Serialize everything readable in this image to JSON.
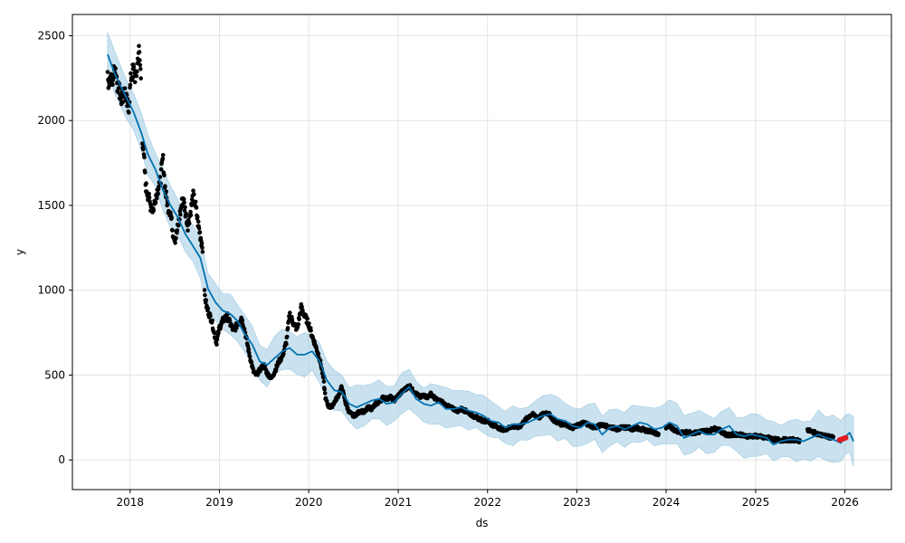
{
  "chart_data": {
    "type": "line",
    "title": "",
    "xlabel": "ds",
    "ylabel": "y",
    "xlim": [
      "2017-05-10",
      "2026-07-10"
    ],
    "ylim": [
      -175,
      2625
    ],
    "x_ticks": [
      {
        "label": "2018",
        "date": "2018-01-01"
      },
      {
        "label": "2019",
        "date": "2019-01-01"
      },
      {
        "label": "2020",
        "date": "2020-01-01"
      },
      {
        "label": "2021",
        "date": "2021-01-01"
      },
      {
        "label": "2022",
        "date": "2022-01-01"
      },
      {
        "label": "2023",
        "date": "2023-01-01"
      },
      {
        "label": "2024",
        "date": "2024-01-01"
      },
      {
        "label": "2025",
        "date": "2025-01-01"
      },
      {
        "label": "2026",
        "date": "2026-01-01"
      }
    ],
    "y_ticks": [
      0,
      500,
      1000,
      1500,
      2000,
      2500
    ],
    "grid": true,
    "legend": "none",
    "colors": {
      "observed": "#000000",
      "forecast": "#0072B2",
      "interval": "#9ecae1",
      "highlight": "#e41a1c"
    },
    "forecast": [
      [
        "2017-10-01",
        2390
      ],
      [
        "2017-11-01",
        2270
      ],
      [
        "2017-12-15",
        2140
      ],
      [
        "2018-01-15",
        2050
      ],
      [
        "2018-02-15",
        1930
      ],
      [
        "2018-03-15",
        1800
      ],
      [
        "2018-04-15",
        1710
      ],
      [
        "2018-05-15",
        1590
      ],
      [
        "2018-06-15",
        1500
      ],
      [
        "2018-07-15",
        1430
      ],
      [
        "2018-08-15",
        1330
      ],
      [
        "2018-09-15",
        1260
      ],
      [
        "2018-10-15",
        1190
      ],
      [
        "2018-11-15",
        1010
      ],
      [
        "2018-12-15",
        930
      ],
      [
        "2019-01-15",
        880
      ],
      [
        "2019-02-15",
        860
      ],
      [
        "2019-03-15",
        820
      ],
      [
        "2019-04-15",
        740
      ],
      [
        "2019-05-15",
        680
      ],
      [
        "2019-06-15",
        580
      ],
      [
        "2019-07-15",
        560
      ],
      [
        "2019-08-15",
        600
      ],
      [
        "2019-09-15",
        640
      ],
      [
        "2019-10-15",
        660
      ],
      [
        "2019-11-15",
        620
      ],
      [
        "2019-12-15",
        620
      ],
      [
        "2020-01-15",
        640
      ],
      [
        "2020-02-15",
        580
      ],
      [
        "2020-03-15",
        470
      ],
      [
        "2020-04-15",
        410
      ],
      [
        "2020-05-15",
        400
      ],
      [
        "2020-06-15",
        330
      ],
      [
        "2020-07-15",
        310
      ],
      [
        "2020-08-15",
        330
      ],
      [
        "2020-09-15",
        350
      ],
      [
        "2020-10-15",
        360
      ],
      [
        "2020-11-15",
        330
      ],
      [
        "2020-12-15",
        340
      ],
      [
        "2021-01-15",
        390
      ],
      [
        "2021-02-15",
        430
      ],
      [
        "2021-03-15",
        360
      ],
      [
        "2021-04-15",
        330
      ],
      [
        "2021-05-15",
        320
      ],
      [
        "2021-06-15",
        340
      ],
      [
        "2021-07-15",
        300
      ],
      [
        "2021-08-15",
        300
      ],
      [
        "2021-09-15",
        310
      ],
      [
        "2021-10-15",
        290
      ],
      [
        "2021-11-15",
        280
      ],
      [
        "2021-12-15",
        260
      ],
      [
        "2022-01-15",
        230
      ],
      [
        "2022-02-15",
        220
      ],
      [
        "2022-03-15",
        190
      ],
      [
        "2022-04-15",
        210
      ],
      [
        "2022-05-15",
        210
      ],
      [
        "2022-06-15",
        220
      ],
      [
        "2022-07-15",
        240
      ],
      [
        "2022-08-15",
        260
      ],
      [
        "2022-09-15",
        270
      ],
      [
        "2022-10-15",
        240
      ],
      [
        "2022-11-15",
        230
      ],
      [
        "2022-12-15",
        200
      ],
      [
        "2023-01-15",
        190
      ],
      [
        "2023-02-15",
        220
      ],
      [
        "2023-03-15",
        210
      ],
      [
        "2023-04-15",
        150
      ],
      [
        "2023-05-15",
        190
      ],
      [
        "2023-06-15",
        200
      ],
      [
        "2023-07-15",
        180
      ],
      [
        "2023-08-15",
        200
      ],
      [
        "2023-09-15",
        220
      ],
      [
        "2023-10-15",
        210
      ],
      [
        "2023-11-15",
        180
      ],
      [
        "2023-12-15",
        190
      ],
      [
        "2024-01-15",
        220
      ],
      [
        "2024-02-15",
        200
      ],
      [
        "2024-03-15",
        130
      ],
      [
        "2024-04-15",
        150
      ],
      [
        "2024-05-15",
        170
      ],
      [
        "2024-06-15",
        150
      ],
      [
        "2024-07-15",
        150
      ],
      [
        "2024-08-15",
        180
      ],
      [
        "2024-09-15",
        200
      ],
      [
        "2024-10-15",
        150
      ],
      [
        "2024-11-15",
        140
      ],
      [
        "2024-12-15",
        150
      ],
      [
        "2025-01-15",
        140
      ],
      [
        "2025-02-15",
        130
      ],
      [
        "2025-03-15",
        90
      ],
      [
        "2025-04-15",
        110
      ],
      [
        "2025-05-15",
        120
      ],
      [
        "2025-06-15",
        120
      ],
      [
        "2025-07-15",
        110
      ],
      [
        "2025-08-15",
        130
      ],
      [
        "2025-09-15",
        150
      ],
      [
        "2025-10-15",
        130
      ],
      [
        "2025-11-15",
        120
      ],
      [
        "2025-12-15",
        100
      ],
      [
        "2026-01-05",
        140
      ],
      [
        "2026-01-20",
        160
      ],
      [
        "2026-02-05",
        110
      ]
    ],
    "interval_width": [
      [
        "2017-10-01",
        130
      ],
      [
        "2018-06-01",
        110
      ],
      [
        "2019-06-01",
        110
      ],
      [
        "2020-06-01",
        110
      ],
      [
        "2021-06-01",
        110
      ],
      [
        "2022-06-01",
        110
      ],
      [
        "2023-06-01",
        110
      ],
      [
        "2024-06-01",
        115
      ],
      [
        "2025-06-01",
        115
      ],
      [
        "2026-02-05",
        130
      ]
    ],
    "observed_segments": [
      [
        [
          "2017-10-01",
          2240
        ],
        [
          "2017-10-20",
          2230
        ],
        [
          "2017-11-01",
          2320
        ],
        [
          "2017-11-10",
          2220
        ],
        [
          "2017-11-25",
          2140
        ],
        [
          "2017-12-10",
          2170
        ],
        [
          "2017-12-25",
          2060
        ],
        [
          "2018-01-05",
          2260
        ],
        [
          "2018-01-15",
          2300
        ],
        [
          "2018-01-25",
          2240
        ],
        [
          "2018-02-05",
          2420
        ],
        [
          "2018-02-10",
          2340
        ],
        [
          "2018-02-15",
          2240
        ]
      ],
      [
        [
          "2018-02-20",
          1900
        ],
        [
          "2018-02-28",
          1750
        ],
        [
          "2018-03-05",
          1620
        ],
        [
          "2018-03-15",
          1560
        ],
        [
          "2018-03-25",
          1500
        ],
        [
          "2018-04-05",
          1470
        ],
        [
          "2018-04-15",
          1550
        ],
        [
          "2018-04-25",
          1600
        ],
        [
          "2018-05-05",
          1650
        ],
        [
          "2018-05-15",
          1780
        ],
        [
          "2018-05-25",
          1580
        ],
        [
          "2018-06-05",
          1490
        ],
        [
          "2018-06-15",
          1460
        ],
        [
          "2018-06-25",
          1340
        ],
        [
          "2018-07-05",
          1300
        ],
        [
          "2018-07-15",
          1370
        ],
        [
          "2018-07-25",
          1460
        ],
        [
          "2018-08-05",
          1550
        ],
        [
          "2018-08-15",
          1460
        ],
        [
          "2018-08-25",
          1380
        ],
        [
          "2018-09-05",
          1460
        ],
        [
          "2018-09-15",
          1560
        ],
        [
          "2018-09-25",
          1500
        ],
        [
          "2018-10-05",
          1400
        ],
        [
          "2018-10-15",
          1320
        ],
        [
          "2018-10-25",
          1250
        ]
      ],
      [
        [
          "2018-11-01",
          980
        ],
        [
          "2018-11-10",
          900
        ],
        [
          "2018-11-20",
          860
        ],
        [
          "2018-12-01",
          820
        ],
        [
          "2018-12-10",
          750
        ],
        [
          "2018-12-20",
          690
        ],
        [
          "2019-01-01",
          780
        ],
        [
          "2019-01-15",
          820
        ],
        [
          "2019-02-01",
          850
        ],
        [
          "2019-02-15",
          800
        ],
        [
          "2019-03-01",
          760
        ],
        [
          "2019-03-15",
          800
        ],
        [
          "2019-04-01",
          840
        ],
        [
          "2019-04-15",
          760
        ],
        [
          "2019-05-01",
          640
        ],
        [
          "2019-05-10",
          580
        ],
        [
          "2019-05-20",
          520
        ],
        [
          "2019-06-01",
          500
        ],
        [
          "2019-06-15",
          530
        ],
        [
          "2019-07-01",
          560
        ],
        [
          "2019-07-15",
          510
        ],
        [
          "2019-08-01",
          480
        ],
        [
          "2019-08-15",
          520
        ],
        [
          "2019-09-01",
          580
        ],
        [
          "2019-09-15",
          610
        ],
        [
          "2019-10-01",
          690
        ],
        [
          "2019-10-15",
          860
        ],
        [
          "2019-11-01",
          800
        ],
        [
          "2019-11-15",
          770
        ],
        [
          "2019-12-01",
          900
        ],
        [
          "2019-12-15",
          850
        ],
        [
          "2020-01-01",
          800
        ],
        [
          "2020-01-15",
          730
        ],
        [
          "2020-02-01",
          660
        ],
        [
          "2020-02-10",
          620
        ],
        [
          "2020-02-20",
          560
        ],
        [
          "2020-03-01",
          480
        ],
        [
          "2020-03-10",
          360
        ],
        [
          "2020-03-20",
          320
        ],
        [
          "2020-04-01",
          310
        ],
        [
          "2020-04-15",
          340
        ],
        [
          "2020-05-01",
          380
        ],
        [
          "2020-05-15",
          430
        ],
        [
          "2020-06-01",
          330
        ],
        [
          "2020-06-15",
          280
        ],
        [
          "2020-07-01",
          260
        ],
        [
          "2020-07-15",
          270
        ],
        [
          "2020-08-01",
          290
        ],
        [
          "2020-08-15",
          280
        ],
        [
          "2020-09-01",
          310
        ],
        [
          "2020-09-15",
          300
        ],
        [
          "2020-10-01",
          330
        ],
        [
          "2020-10-15",
          340
        ],
        [
          "2020-11-01",
          370
        ],
        [
          "2020-11-15",
          360
        ],
        [
          "2020-12-01",
          370
        ],
        [
          "2020-12-15",
          350
        ],
        [
          "2021-01-01",
          380
        ],
        [
          "2021-01-15",
          400
        ],
        [
          "2021-02-01",
          420
        ],
        [
          "2021-02-15",
          440
        ],
        [
          "2021-03-01",
          410
        ],
        [
          "2021-03-15",
          390
        ],
        [
          "2021-04-01",
          370
        ],
        [
          "2021-04-15",
          380
        ],
        [
          "2021-05-01",
          370
        ],
        [
          "2021-05-15",
          390
        ],
        [
          "2021-06-01",
          360
        ],
        [
          "2021-06-15",
          350
        ],
        [
          "2021-07-01",
          340
        ],
        [
          "2021-07-15",
          320
        ],
        [
          "2021-08-01",
          310
        ],
        [
          "2021-08-15",
          300
        ],
        [
          "2021-09-01",
          290
        ],
        [
          "2021-09-15",
          300
        ],
        [
          "2021-10-01",
          290
        ],
        [
          "2021-10-15",
          280
        ],
        [
          "2021-11-01",
          260
        ],
        [
          "2021-11-15",
          250
        ],
        [
          "2021-12-01",
          240
        ],
        [
          "2021-12-15",
          230
        ],
        [
          "2022-01-01",
          230
        ],
        [
          "2022-01-15",
          210
        ],
        [
          "2022-02-01",
          200
        ],
        [
          "2022-02-15",
          190
        ],
        [
          "2022-03-01",
          180
        ],
        [
          "2022-03-15",
          180
        ],
        [
          "2022-04-01",
          190
        ],
        [
          "2022-04-15",
          200
        ],
        [
          "2022-05-01",
          190
        ],
        [
          "2022-05-15",
          200
        ],
        [
          "2022-06-01",
          230
        ],
        [
          "2022-06-15",
          250
        ],
        [
          "2022-07-01",
          270
        ],
        [
          "2022-07-15",
          260
        ],
        [
          "2022-08-01",
          250
        ],
        [
          "2022-08-15",
          270
        ],
        [
          "2022-09-01",
          280
        ],
        [
          "2022-09-15",
          260
        ],
        [
          "2022-10-01",
          230
        ],
        [
          "2022-10-15",
          220
        ],
        [
          "2022-11-01",
          210
        ],
        [
          "2022-11-15",
          210
        ],
        [
          "2022-12-01",
          200
        ],
        [
          "2022-12-15",
          190
        ],
        [
          "2023-01-01",
          200
        ],
        [
          "2023-01-15",
          210
        ],
        [
          "2023-02-01",
          220
        ],
        [
          "2023-02-15",
          210
        ],
        [
          "2023-03-01",
          200
        ],
        [
          "2023-03-15",
          190
        ],
        [
          "2023-04-01",
          200
        ],
        [
          "2023-04-15",
          210
        ],
        [
          "2023-05-01",
          200
        ],
        [
          "2023-05-15",
          190
        ],
        [
          "2023-06-01",
          190
        ],
        [
          "2023-06-15",
          180
        ],
        [
          "2023-07-01",
          190
        ],
        [
          "2023-07-15",
          190
        ],
        [
          "2023-08-01",
          190
        ],
        [
          "2023-08-15",
          180
        ],
        [
          "2023-09-01",
          190
        ],
        [
          "2023-09-15",
          180
        ],
        [
          "2023-10-01",
          180
        ],
        [
          "2023-10-15",
          170
        ],
        [
          "2023-11-01",
          170
        ],
        [
          "2023-11-15",
          160
        ],
        [
          "2023-12-01",
          150
        ]
      ],
      [
        [
          "2024-01-01",
          190
        ],
        [
          "2024-01-15",
          200
        ],
        [
          "2024-02-01",
          180
        ],
        [
          "2024-02-15",
          170
        ],
        [
          "2024-03-01",
          160
        ],
        [
          "2024-03-15",
          160
        ],
        [
          "2024-04-01",
          165
        ],
        [
          "2024-04-15",
          160
        ],
        [
          "2024-05-01",
          160
        ],
        [
          "2024-05-15",
          165
        ],
        [
          "2024-06-01",
          170
        ],
        [
          "2024-06-15",
          170
        ],
        [
          "2024-07-01",
          175
        ],
        [
          "2024-07-15",
          185
        ],
        [
          "2024-08-01",
          180
        ],
        [
          "2024-08-15",
          165
        ],
        [
          "2024-09-01",
          150
        ],
        [
          "2024-09-15",
          145
        ],
        [
          "2024-10-01",
          150
        ],
        [
          "2024-10-15",
          150
        ],
        [
          "2024-11-01",
          150
        ],
        [
          "2024-11-15",
          140
        ],
        [
          "2024-12-01",
          140
        ],
        [
          "2024-12-15",
          140
        ],
        [
          "2025-01-01",
          140
        ],
        [
          "2025-01-15",
          140
        ],
        [
          "2025-02-01",
          130
        ],
        [
          "2025-02-15",
          130
        ],
        [
          "2025-03-01",
          130
        ],
        [
          "2025-03-15",
          120
        ],
        [
          "2025-04-01",
          120
        ],
        [
          "2025-04-15",
          115
        ],
        [
          "2025-05-01",
          120
        ],
        [
          "2025-05-15",
          115
        ],
        [
          "2025-06-01",
          120
        ],
        [
          "2025-06-15",
          115
        ],
        [
          "2025-07-01",
          110
        ]
      ],
      [
        [
          "2025-08-01",
          180
        ],
        [
          "2025-08-10",
          170
        ],
        [
          "2025-08-20",
          165
        ],
        [
          "2025-09-01",
          160
        ],
        [
          "2025-09-15",
          150
        ],
        [
          "2025-10-01",
          145
        ],
        [
          "2025-10-15",
          140
        ],
        [
          "2025-11-01",
          135
        ],
        [
          "2025-11-15",
          130
        ]
      ]
    ],
    "highlighted": [
      [
        "2025-12-10",
        118
      ],
      [
        "2025-12-15",
        120
      ],
      [
        "2025-12-20",
        122
      ],
      [
        "2025-12-25",
        125
      ],
      [
        "2025-12-30",
        128
      ],
      [
        "2026-01-04",
        130
      ]
    ]
  }
}
